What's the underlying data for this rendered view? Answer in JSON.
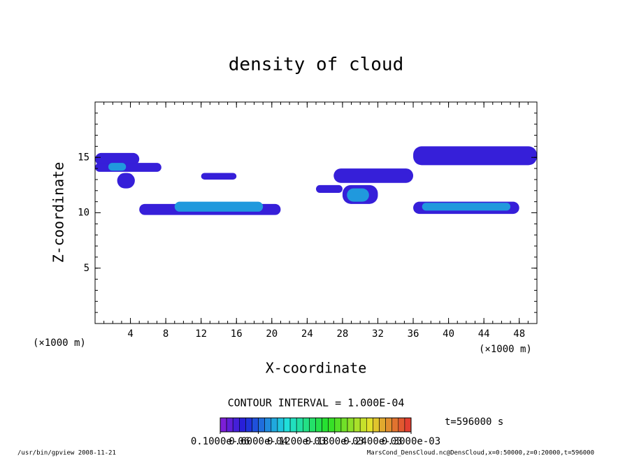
{
  "chart_data": {
    "type": "contour",
    "title": "density of cloud",
    "x_label": "X-coordinate",
    "y_label": "Z-coordinate",
    "x_unit": "(×1000 m)",
    "y_unit": "(×1000 m)",
    "xlim": [
      0,
      50
    ],
    "xticks": [
      4,
      8,
      12,
      16,
      20,
      24,
      28,
      32,
      36,
      40,
      44,
      48
    ],
    "ylim": [
      0,
      20
    ],
    "yticks": [
      5,
      10,
      15
    ],
    "patches": [
      {
        "x": [
          0,
          5
        ],
        "z": [
          14.3,
          15.4
        ],
        "value": 3e-05
      },
      {
        "x": [
          0,
          7.5
        ],
        "z": [
          13.7,
          14.5
        ],
        "value": 3e-05
      },
      {
        "x": [
          2.5,
          4.5
        ],
        "z": [
          12.2,
          13.6
        ],
        "value": 3e-05
      },
      {
        "x": [
          1.5,
          3.5
        ],
        "z": [
          13.8,
          14.5
        ],
        "value": 8e-05
      },
      {
        "x": [
          12,
          16
        ],
        "z": [
          13,
          13.6
        ],
        "value": 3e-05
      },
      {
        "x": [
          5,
          21
        ],
        "z": [
          9.8,
          10.8
        ],
        "value": 3e-05
      },
      {
        "x": [
          9,
          19
        ],
        "z": [
          10.1,
          11
        ],
        "value": 8e-05
      },
      {
        "x": [
          27,
          36
        ],
        "z": [
          12.7,
          14
        ],
        "value": 3e-05
      },
      {
        "x": [
          28,
          32
        ],
        "z": [
          10.8,
          12.5
        ],
        "value": 3e-05
      },
      {
        "x": [
          28.5,
          31
        ],
        "z": [
          11,
          12.2
        ],
        "value": 8e-05
      },
      {
        "x": [
          25,
          28
        ],
        "z": [
          11.8,
          12.5
        ],
        "value": 3e-05
      },
      {
        "x": [
          36,
          50
        ],
        "z": [
          14.3,
          16
        ],
        "value": 3e-05
      },
      {
        "x": [
          36,
          48
        ],
        "z": [
          9.9,
          11
        ],
        "value": 3e-05
      },
      {
        "x": [
          37,
          47
        ],
        "z": [
          10.2,
          10.9
        ],
        "value": 8e-05
      }
    ],
    "contour_interval": "CONTOUR INTERVAL = 1.000E-04",
    "colorbar_lim": [
      1e-07,
      0.0003
    ],
    "colorbar_ticks": [
      {
        "value": 1e-07,
        "label": "0.1000e-06"
      },
      {
        "value": 6e-05,
        "label": "0.6000e-04"
      },
      {
        "value": 0.00012,
        "label": "0.1200e-03"
      },
      {
        "value": 0.00018,
        "label": "0.1800e-03"
      },
      {
        "value": 0.00024,
        "label": "0.2400e-03"
      },
      {
        "value": 0.0003,
        "label": "0.3000e-03"
      }
    ],
    "time_label": "t=596000 s",
    "footer_left": "/usr/bin/gpview   2008-11-21",
    "footer_right": "MarsCond_DensCloud.nc@DensCloud,x=0:50000,z=0:20000,t=596000"
  }
}
